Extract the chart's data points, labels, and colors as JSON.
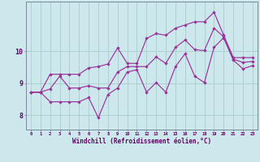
{
  "xlabel": "Windchill (Refroidissement éolien,°C)",
  "hours": [
    0,
    1,
    2,
    3,
    4,
    5,
    6,
    7,
    8,
    9,
    10,
    11,
    12,
    13,
    14,
    15,
    16,
    17,
    18,
    19,
    20,
    21,
    22,
    23
  ],
  "upper": [
    8.72,
    8.72,
    9.28,
    9.28,
    9.28,
    9.28,
    9.48,
    9.52,
    9.6,
    10.1,
    9.62,
    9.62,
    10.4,
    10.55,
    10.5,
    10.72,
    10.82,
    10.92,
    10.92,
    11.22,
    10.5,
    9.8,
    9.8,
    9.8
  ],
  "mean": [
    8.72,
    8.72,
    8.82,
    9.22,
    8.85,
    8.85,
    8.92,
    8.85,
    8.85,
    9.35,
    9.52,
    9.52,
    9.52,
    9.82,
    9.62,
    10.12,
    10.35,
    10.05,
    10.02,
    10.72,
    10.45,
    9.75,
    9.65,
    9.68
  ],
  "lower": [
    8.72,
    8.72,
    8.42,
    8.42,
    8.42,
    8.42,
    8.55,
    7.92,
    8.65,
    8.85,
    9.35,
    9.42,
    8.72,
    9.02,
    8.72,
    9.52,
    9.92,
    9.22,
    9.02,
    10.12,
    10.42,
    9.72,
    9.45,
    9.55
  ],
  "bg_color": "#cce8ec",
  "line_color": "#993399",
  "grid_color": "#aacccc",
  "axis_color": "#660066",
  "ylim": [
    7.55,
    11.55
  ],
  "yticks": [
    8,
    9,
    10
  ],
  "xlim": [
    -0.5,
    23.5
  ]
}
